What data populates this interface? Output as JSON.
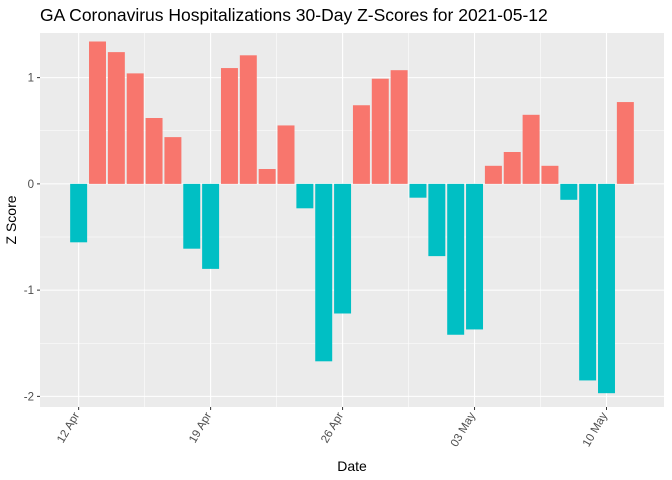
{
  "chart_data": {
    "type": "bar",
    "title": "GA Coronavirus Hospitalizations 30-Day Z-Scores for 2021-05-12",
    "xlabel": "Date",
    "ylabel": "Z Score",
    "ylim": [
      -2.1,
      1.42
    ],
    "y_ticks": [
      -2,
      -1,
      0,
      1
    ],
    "y_tick_labels": [
      "-2",
      "-1",
      "0",
      "1"
    ],
    "x_tick_labels": [
      "12 Apr",
      "19 Apr",
      "26 Apr",
      "03 May",
      "10 May"
    ],
    "x_tick_dates": [
      "2021-04-12",
      "2021-04-19",
      "2021-04-26",
      "2021-05-03",
      "2021-05-10"
    ],
    "x_range": [
      "2021-04-12",
      "2021-05-11"
    ],
    "grid": true,
    "legend": "none",
    "colors": {
      "positive": "#F8766D",
      "negative": "#00BFC4",
      "panel": "#EBEBEB",
      "grid": "#FFFFFF"
    },
    "dates": [
      "2021-04-12",
      "2021-04-13",
      "2021-04-14",
      "2021-04-15",
      "2021-04-16",
      "2021-04-17",
      "2021-04-18",
      "2021-04-19",
      "2021-04-20",
      "2021-04-21",
      "2021-04-22",
      "2021-04-23",
      "2021-04-24",
      "2021-04-25",
      "2021-04-26",
      "2021-04-27",
      "2021-04-28",
      "2021-04-29",
      "2021-04-30",
      "2021-05-01",
      "2021-05-02",
      "2021-05-03",
      "2021-05-04",
      "2021-05-05",
      "2021-05-06",
      "2021-05-07",
      "2021-05-08",
      "2021-05-09",
      "2021-05-10",
      "2021-05-11"
    ],
    "values": [
      -0.55,
      1.34,
      1.24,
      1.04,
      0.62,
      0.44,
      -0.61,
      -0.8,
      1.09,
      1.21,
      0.14,
      0.55,
      -0.23,
      -1.67,
      -1.22,
      0.74,
      0.99,
      1.07,
      -0.13,
      -0.68,
      -1.42,
      -1.37,
      0.17,
      0.3,
      0.65,
      0.17,
      -0.15,
      -1.85,
      -1.97,
      0.77
    ]
  }
}
